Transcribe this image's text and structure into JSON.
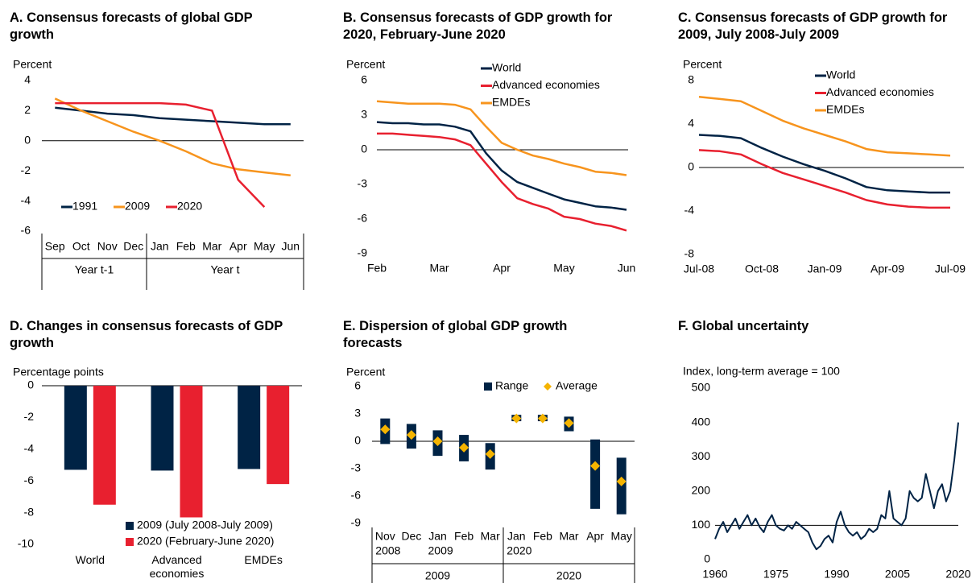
{
  "chart_data": [
    {
      "type": "line",
      "title": "A. Consensus forecasts of global GDP growth",
      "y_label": "Percent",
      "groups": [
        {
          "label": "Year t-1",
          "categories": [
            "Sep",
            "Oct",
            "Nov",
            "Dec"
          ]
        },
        {
          "label": "Year t",
          "categories": [
            "Jan",
            "Feb",
            "Mar",
            "Apr",
            "May",
            "Jun"
          ]
        }
      ],
      "series": [
        {
          "name": "1991",
          "color": "#002345",
          "values": [
            2.2,
            2.0,
            1.8,
            1.7,
            1.5,
            1.4,
            1.3,
            1.2,
            1.1,
            1.1
          ]
        },
        {
          "name": "2009",
          "color": "#f7941d",
          "values": [
            2.8,
            2.0,
            1.3,
            0.6,
            0.0,
            -0.7,
            -1.5,
            -1.9,
            -2.1,
            -2.3
          ]
        },
        {
          "name": "2020",
          "color": "#e8202f",
          "values": [
            2.5,
            2.5,
            2.5,
            2.5,
            2.5,
            2.4,
            2.0,
            -2.6,
            -4.4,
            null
          ]
        }
      ],
      "ylim": [
        -6,
        4
      ],
      "yticks": [
        -6,
        -4,
        -2,
        0,
        2,
        4
      ],
      "legend": "lower left"
    },
    {
      "type": "line",
      "title": "B. Consensus forecasts of GDP growth for 2020, February-June 2020",
      "y_label": "Percent",
      "categories": [
        "Feb",
        null,
        null,
        null,
        "Mar",
        null,
        null,
        null,
        "Apr",
        null,
        null,
        null,
        "May",
        null,
        null,
        null,
        "Jun"
      ],
      "series": [
        {
          "name": "World",
          "color": "#002345",
          "values": [
            2.4,
            2.3,
            2.3,
            2.2,
            2.2,
            2.0,
            1.6,
            -0.3,
            -1.8,
            -2.8,
            -3.3,
            -3.8,
            -4.3,
            -4.6,
            -4.9,
            -5.0,
            -5.2
          ]
        },
        {
          "name": "Advanced economies",
          "color": "#e8202f",
          "values": [
            1.4,
            1.4,
            1.3,
            1.2,
            1.1,
            0.9,
            0.4,
            -1.2,
            -2.8,
            -4.2,
            -4.7,
            -5.1,
            -5.8,
            -6.0,
            -6.4,
            -6.6,
            -7.0
          ]
        },
        {
          "name": "EMDEs",
          "color": "#f7941d",
          "values": [
            4.2,
            4.1,
            4.0,
            4.0,
            4.0,
            3.9,
            3.5,
            2.0,
            0.6,
            0.0,
            -0.5,
            -0.8,
            -1.2,
            -1.5,
            -1.9,
            -2.0,
            -2.2
          ]
        }
      ],
      "ylim": [
        -9,
        6
      ],
      "yticks": [
        -9,
        -6,
        -3,
        0,
        3,
        6
      ],
      "legend": "upper right"
    },
    {
      "type": "line",
      "title": "C. Consensus forecasts of GDP growth for 2009, July 2008-July 2009",
      "y_label": "Percent",
      "categories": [
        "Jul-08",
        null,
        null,
        "Oct-08",
        null,
        null,
        "Jan-09",
        null,
        null,
        "Apr-09",
        null,
        null,
        "Jul-09"
      ],
      "series": [
        {
          "name": "World",
          "color": "#002345",
          "values": [
            3.0,
            2.9,
            2.7,
            1.8,
            1.0,
            0.3,
            -0.3,
            -1.0,
            -1.8,
            -2.1,
            -2.2,
            -2.3,
            -2.3
          ]
        },
        {
          "name": "Advanced economies",
          "color": "#e8202f",
          "values": [
            1.6,
            1.5,
            1.2,
            0.3,
            -0.5,
            -1.1,
            -1.7,
            -2.3,
            -3.0,
            -3.4,
            -3.6,
            -3.7,
            -3.7
          ]
        },
        {
          "name": "EMDEs",
          "color": "#f7941d",
          "values": [
            6.5,
            6.3,
            6.1,
            5.2,
            4.3,
            3.6,
            3.0,
            2.4,
            1.7,
            1.4,
            1.3,
            1.2,
            1.1
          ]
        }
      ],
      "ylim": [
        -8,
        8
      ],
      "yticks": [
        -8,
        -4,
        0,
        4,
        8
      ],
      "legend": "upper right"
    },
    {
      "type": "bar",
      "title": "D. Changes in consensus forecasts of GDP growth",
      "y_label": "Percentage points",
      "categories": [
        "World",
        "Advanced economies",
        "EMDEs"
      ],
      "series": [
        {
          "name": "2009 (July 2008-July 2009)",
          "color": "#002345",
          "values": [
            -5.3,
            -5.35,
            -5.25
          ]
        },
        {
          "name": "2020 (February-June 2020)",
          "color": "#e8202f",
          "values": [
            -7.5,
            -8.3,
            -6.2
          ]
        }
      ],
      "ylim": [
        -10,
        0
      ],
      "yticks": [
        -10,
        -8,
        -6,
        -4,
        -2,
        0
      ],
      "legend": "lower right"
    },
    {
      "type": "range",
      "title": "E. Dispersion of global GDP growth forecasts",
      "y_label": "Percent",
      "groups": [
        {
          "label": "2009",
          "categories": [
            "Nov",
            "Dec",
            "Jan",
            "Feb",
            "Mar"
          ],
          "years": [
            "2008",
            null,
            "2009",
            null,
            null
          ]
        },
        {
          "label": "2020",
          "categories": [
            "Jan",
            "Feb",
            "Mar",
            "Apr",
            "May"
          ],
          "years": [
            "2020",
            null,
            null,
            null,
            null
          ]
        }
      ],
      "range": {
        "name": "Range",
        "color": "#002345",
        "low": [
          -0.3,
          -0.8,
          -1.6,
          -2.2,
          -3.1,
          2.2,
          2.2,
          1.1,
          -7.4,
          -8.0
        ],
        "high": [
          2.5,
          1.9,
          1.2,
          0.7,
          -0.2,
          2.9,
          2.9,
          2.7,
          0.2,
          -1.8
        ]
      },
      "average": {
        "name": "Average",
        "color": "#f5b400",
        "values": [
          1.3,
          0.7,
          0.0,
          -0.7,
          -1.4,
          2.5,
          2.5,
          2.0,
          -2.7,
          -4.4
        ]
      },
      "ylim": [
        -9,
        6
      ],
      "yticks": [
        -9,
        -6,
        -3,
        0,
        3,
        6
      ],
      "legend": "upper right"
    },
    {
      "type": "line",
      "title": "F. Global uncertainty",
      "y_label": "Index, long-term average = 100",
      "x": [
        1960,
        1961,
        1962,
        1963,
        1964,
        1965,
        1966,
        1967,
        1968,
        1969,
        1970,
        1971,
        1972,
        1973,
        1974,
        1975,
        1976,
        1977,
        1978,
        1979,
        1980,
        1981,
        1982,
        1983,
        1984,
        1985,
        1986,
        1987,
        1988,
        1989,
        1990,
        1991,
        1992,
        1993,
        1994,
        1995,
        1996,
        1997,
        1998,
        1999,
        2000,
        2001,
        2002,
        2003,
        2004,
        2005,
        2006,
        2007,
        2008,
        2009,
        2010,
        2011,
        2012,
        2013,
        2014,
        2015,
        2016,
        2017,
        2018,
        2019,
        2020
      ],
      "series": [
        {
          "color": "#002345",
          "values": [
            60,
            90,
            110,
            80,
            100,
            120,
            90,
            110,
            130,
            100,
            120,
            95,
            80,
            110,
            130,
            100,
            90,
            85,
            100,
            90,
            110,
            100,
            90,
            80,
            50,
            30,
            40,
            60,
            70,
            50,
            110,
            140,
            100,
            80,
            70,
            80,
            60,
            70,
            90,
            80,
            90,
            130,
            120,
            200,
            120,
            110,
            100,
            120,
            200,
            180,
            170,
            180,
            250,
            200,
            150,
            200,
            220,
            170,
            200,
            290,
            400
          ]
        }
      ],
      "reference_line": 100,
      "xlim": [
        1960,
        2020
      ],
      "xticks": [
        1960,
        1975,
        1990,
        2005,
        2020
      ],
      "ylim": [
        0,
        500
      ],
      "yticks": [
        0,
        100,
        200,
        300,
        400,
        500
      ]
    }
  ]
}
